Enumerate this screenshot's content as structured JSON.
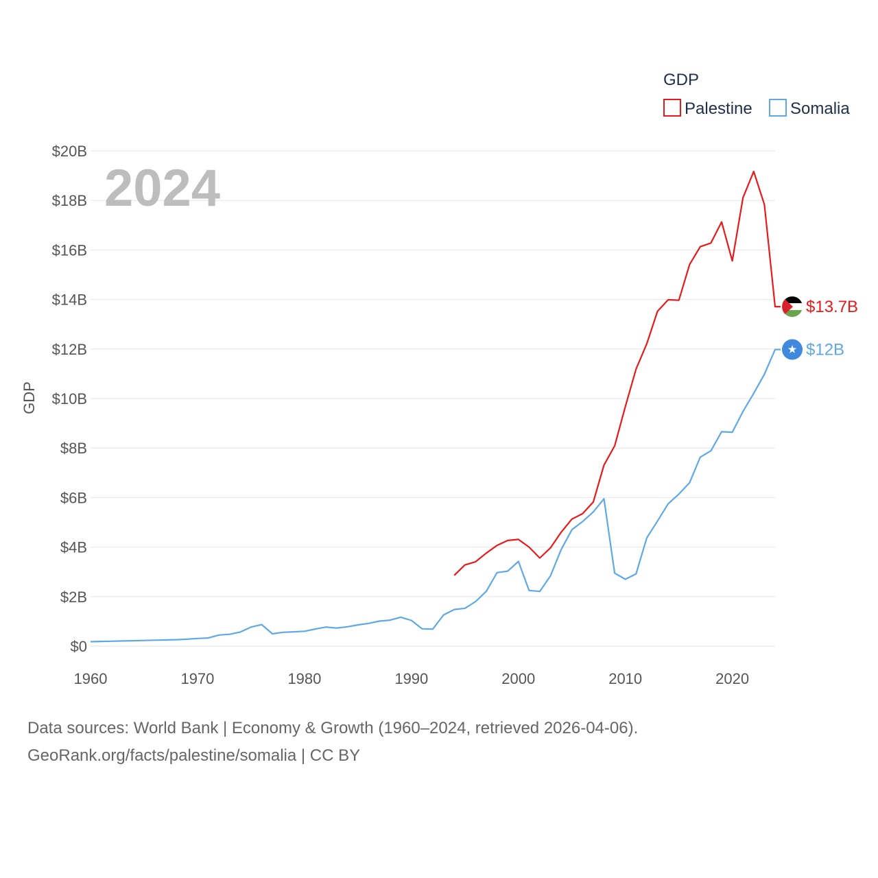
{
  "chart_data": {
    "type": "line",
    "title": "GDP",
    "overlay_year": "2024",
    "ylabel": "GDP",
    "xlabel": "",
    "xlim": [
      1960,
      2024
    ],
    "ylim": [
      0,
      20
    ],
    "y_unit": "billion USD",
    "x_ticks": [
      "1960",
      "1970",
      "1980",
      "1990",
      "2000",
      "2010",
      "2020"
    ],
    "y_ticks": [
      "$0",
      "$2B",
      "$4B",
      "$6B",
      "$8B",
      "$10B",
      "$12B",
      "$14B",
      "$16B",
      "$18B",
      "$20B"
    ],
    "legend": {
      "title": "GDP",
      "position": "top-right"
    },
    "series": [
      {
        "name": "Palestine",
        "color": "#e8191b",
        "end_label": "$13.7B",
        "icon": "palestine-flag-icon",
        "x": [
          1994,
          1995,
          1996,
          1997,
          1998,
          1999,
          2000,
          2001,
          2002,
          2003,
          2004,
          2005,
          2006,
          2007,
          2008,
          2009,
          2010,
          2011,
          2012,
          2013,
          2014,
          2015,
          2016,
          2017,
          2018,
          2019,
          2020,
          2021,
          2022,
          2023,
          2024
        ],
        "values": [
          2.86,
          3.28,
          3.41,
          3.76,
          4.07,
          4.27,
          4.31,
          4.0,
          3.56,
          3.97,
          4.6,
          5.13,
          5.35,
          5.82,
          7.31,
          8.09,
          9.68,
          11.19,
          12.21,
          13.52,
          13.99,
          13.97,
          15.41,
          16.13,
          16.28,
          17.13,
          15.56,
          18.11,
          19.17,
          17.83,
          13.71
        ]
      },
      {
        "name": "Somalia",
        "color": "#5ea8e6",
        "end_label": "$12B",
        "icon": "somalia-flag-icon",
        "x": [
          1960,
          1961,
          1962,
          1963,
          1964,
          1965,
          1966,
          1967,
          1968,
          1969,
          1970,
          1971,
          1972,
          1973,
          1974,
          1975,
          1976,
          1977,
          1978,
          1979,
          1980,
          1981,
          1982,
          1983,
          1984,
          1985,
          1986,
          1987,
          1988,
          1989,
          1990,
          1991,
          1992,
          1993,
          1994,
          1995,
          1996,
          1997,
          1998,
          1999,
          2000,
          2001,
          2002,
          2003,
          2004,
          2005,
          2006,
          2007,
          2008,
          2009,
          2010,
          2011,
          2012,
          2013,
          2014,
          2015,
          2016,
          2017,
          2018,
          2019,
          2020,
          2021,
          2022,
          2023,
          2024
        ],
        "values": [
          0.18,
          0.19,
          0.2,
          0.21,
          0.22,
          0.23,
          0.24,
          0.25,
          0.26,
          0.28,
          0.31,
          0.33,
          0.45,
          0.48,
          0.57,
          0.77,
          0.87,
          0.5,
          0.56,
          0.58,
          0.6,
          0.69,
          0.77,
          0.73,
          0.78,
          0.86,
          0.92,
          1.01,
          1.05,
          1.17,
          1.04,
          0.7,
          0.69,
          1.26,
          1.48,
          1.53,
          1.8,
          2.22,
          2.97,
          3.03,
          3.42,
          2.25,
          2.21,
          2.84,
          3.9,
          4.7,
          5.03,
          5.42,
          5.95,
          2.95,
          2.7,
          2.92,
          4.37,
          5.05,
          5.75,
          6.14,
          6.6,
          7.63,
          7.89,
          8.66,
          8.64,
          9.48,
          10.21,
          10.98,
          11.98
        ]
      }
    ]
  },
  "footer": {
    "line1": "Data sources: World Bank | Economy & Growth (1960–2024, retrieved 2026-04-06).",
    "line2": "GeoRank.org/facts/palestine/somalia | CC BY"
  }
}
